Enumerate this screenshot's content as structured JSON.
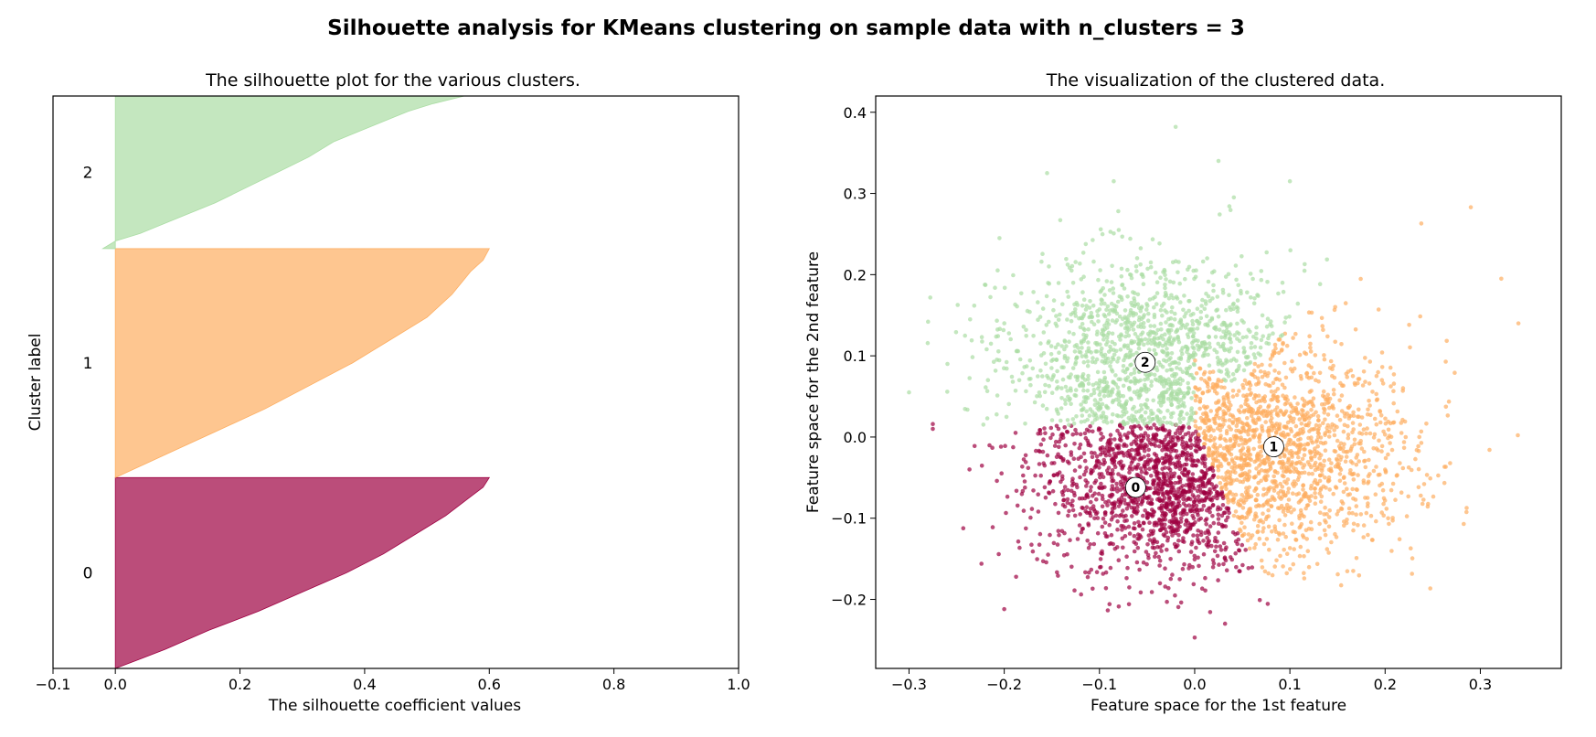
{
  "suptitle": "Silhouette analysis for KMeans clustering on sample data with n_clusters = 3",
  "colors": {
    "cluster_0": "#9e0142",
    "cluster_1": "#fdae61",
    "cluster_2": "#abdda4"
  },
  "chart_data": [
    {
      "type": "area",
      "name": "silhouette",
      "title": "The silhouette plot for the various clusters.",
      "xlabel": "The silhouette coefficient values",
      "ylabel": "Cluster label",
      "xlim": [
        -0.1,
        1.0
      ],
      "xticks": [
        -0.1,
        0.0,
        0.2,
        0.4,
        0.6,
        0.8,
        1.0
      ],
      "xtick_labels": [
        "−0.1",
        "0.0",
        "0.2",
        "0.4",
        "0.6",
        "0.8",
        "1.0"
      ],
      "ylim": [
        0,
        3
      ],
      "ytick_labels": [
        "0",
        "1",
        "2"
      ],
      "grid": false,
      "clusters": [
        {
          "label": "0",
          "y_range": [
            0.0,
            1.0
          ],
          "sample_fraction": [
            0.0,
            0.05,
            0.1,
            0.2,
            0.3,
            0.4,
            0.5,
            0.6,
            0.7,
            0.8,
            0.9,
            0.95,
            1.0
          ],
          "silhouette": [
            0.0,
            0.04,
            0.08,
            0.15,
            0.23,
            0.3,
            0.37,
            0.43,
            0.48,
            0.53,
            0.57,
            0.59,
            0.6
          ]
        },
        {
          "label": "1",
          "y_range": [
            1.0,
            2.2
          ],
          "sample_fraction": [
            0.0,
            0.05,
            0.1,
            0.2,
            0.3,
            0.4,
            0.5,
            0.6,
            0.7,
            0.8,
            0.9,
            0.95,
            1.0
          ],
          "silhouette": [
            0.0,
            0.04,
            0.08,
            0.16,
            0.24,
            0.31,
            0.38,
            0.44,
            0.5,
            0.54,
            0.57,
            0.59,
            0.6
          ]
        },
        {
          "label": "2",
          "y_range": [
            2.2,
            3.0
          ],
          "sample_fraction": [
            0.0,
            0.05,
            0.1,
            0.2,
            0.3,
            0.4,
            0.5,
            0.6,
            0.7,
            0.8,
            0.9,
            0.95,
            1.0
          ],
          "silhouette": [
            -0.02,
            0.0,
            0.04,
            0.1,
            0.16,
            0.21,
            0.26,
            0.31,
            0.35,
            0.41,
            0.47,
            0.51,
            0.56
          ]
        }
      ],
      "average_line": null
    },
    {
      "type": "scatter",
      "name": "clustered-data",
      "title": "The visualization of the clustered data.",
      "xlabel": "Feature space for the 1st feature",
      "ylabel": "Feature space for the 2nd feature",
      "xlim": [
        -0.335,
        0.385
      ],
      "ylim": [
        -0.285,
        0.42
      ],
      "xticks": [
        -0.3,
        -0.2,
        -0.1,
        0.0,
        0.1,
        0.2,
        0.3
      ],
      "xtick_labels": [
        "−0.3",
        "−0.2",
        "−0.1",
        "0.0",
        "0.1",
        "0.2",
        "0.3"
      ],
      "yticks": [
        -0.2,
        -0.1,
        0.0,
        0.1,
        0.2,
        0.3,
        0.4
      ],
      "ytick_labels": [
        "−0.2",
        "−0.1",
        "0.0",
        "0.1",
        "0.2",
        "0.3",
        "0.4"
      ],
      "grid": false,
      "centers": [
        {
          "label": "0",
          "x": -0.062,
          "y": -0.062
        },
        {
          "label": "1",
          "x": 0.083,
          "y": -0.012
        },
        {
          "label": "2",
          "x": -0.052,
          "y": 0.092
        }
      ],
      "outliers": [
        {
          "cluster": 2,
          "x": -0.3,
          "y": 0.055
        },
        {
          "cluster": 2,
          "x": -0.28,
          "y": 0.142
        },
        {
          "cluster": 2,
          "x": -0.205,
          "y": 0.245
        },
        {
          "cluster": 2,
          "x": -0.155,
          "y": 0.325
        },
        {
          "cluster": 2,
          "x": -0.085,
          "y": 0.315
        },
        {
          "cluster": 2,
          "x": -0.02,
          "y": 0.382
        },
        {
          "cluster": 2,
          "x": 0.025,
          "y": 0.34
        },
        {
          "cluster": 2,
          "x": 0.1,
          "y": 0.315
        },
        {
          "cluster": 0,
          "x": -0.275,
          "y": 0.016
        },
        {
          "cluster": 0,
          "x": -0.275,
          "y": 0.01
        },
        {
          "cluster": 0,
          "x": -0.2,
          "y": -0.212
        },
        {
          "cluster": 0,
          "x": 0.0,
          "y": -0.247
        },
        {
          "cluster": 1,
          "x": 0.29,
          "y": 0.283
        },
        {
          "cluster": 1,
          "x": 0.34,
          "y": 0.14
        },
        {
          "cluster": 1,
          "x": 0.322,
          "y": 0.195
        },
        {
          "cluster": 1,
          "x": 0.238,
          "y": 0.263
        }
      ]
    }
  ]
}
